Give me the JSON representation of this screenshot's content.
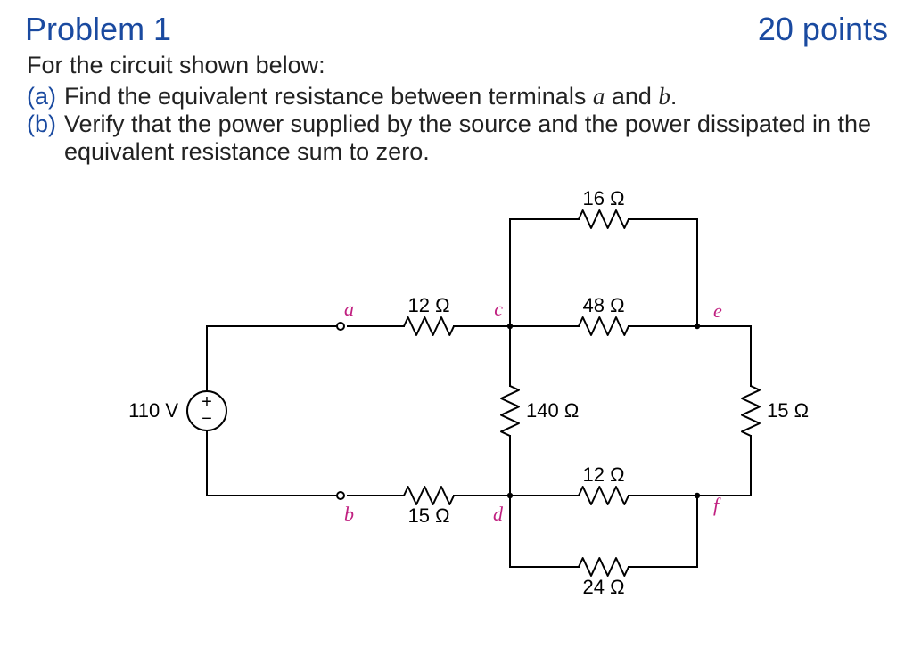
{
  "header": {
    "title": "Problem 1",
    "points": "20 points"
  },
  "prompt": "For the circuit shown below:",
  "parts": {
    "a": {
      "label": "(a)",
      "text_pre": "Find the equivalent resistance between terminals ",
      "var1": "a",
      "mid": " and ",
      "var2": "b",
      "post": "."
    },
    "b": {
      "label": "(b)",
      "text": "Verify that the power supplied by the source and the power dissipated in the equivalent resistance sum to zero."
    }
  },
  "colors": {
    "accent": "#1a4aa0",
    "node_label": "#c02080",
    "wire": "#000000",
    "bg": "#ffffff"
  },
  "circuit": {
    "source": {
      "label": "110 V",
      "plus": "+",
      "minus": "−"
    },
    "nodes": {
      "a": "a",
      "b": "b",
      "c": "c",
      "d": "d",
      "e": "e",
      "f": "f"
    },
    "resistors": {
      "r12a": "12 Ω",
      "r15b": "15 Ω",
      "r140": "140 Ω",
      "r16": "16 Ω",
      "r48": "48 Ω",
      "r12d": "12 Ω",
      "r24": "24 Ω",
      "r15e": "15 Ω"
    },
    "stroke_width": 2,
    "resistor": {
      "zig_amp": 10,
      "zig_len": 56
    },
    "terminal_radius": 4
  }
}
